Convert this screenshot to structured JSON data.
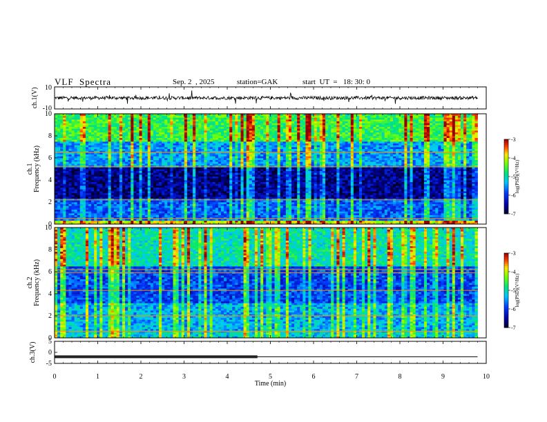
{
  "header": {
    "title": "VLF  Spectra",
    "date": "Sep. 2  , 2025",
    "station": "station=GAK",
    "start_ut": "start  UT  =   18: 30: 0"
  },
  "chart_data": [
    {
      "type": "line",
      "id": "ch1-waveform",
      "ylabel": "ch.1(V)",
      "ylim": [
        -10,
        10
      ],
      "yticks": [
        "10",
        "-10"
      ],
      "xlim": [
        0,
        10
      ],
      "description_values_note": "noisy signal centered near 0 V, amplitude ~±2 V with spikes to ~±5 V",
      "x_end": 9.8
    },
    {
      "type": "heatmap",
      "id": "ch1-spectrogram",
      "ylabel": "ch.1\nFrequency  (kHz)",
      "ylabel_top": "ch.1",
      "ylabel_bottom": "Frequency  (kHz)",
      "ylim": [
        0,
        10
      ],
      "yticks": [
        "0",
        "2",
        "4",
        "6",
        "8",
        "10"
      ],
      "xlim": [
        0,
        10
      ],
      "x_end": 9.8,
      "bands_khz": [
        {
          "from": 0,
          "to": 0.3,
          "level": -4
        },
        {
          "from": 0.3,
          "to": 2.4,
          "level": -5.8
        },
        {
          "from": 2.4,
          "to": 5.2,
          "level": -6.6
        },
        {
          "from": 5.2,
          "to": 7.5,
          "level": -5.5
        },
        {
          "from": 7.5,
          "to": 10,
          "level": -4.6
        }
      ],
      "colorbar": {
        "label": "log(PSD)(V²/Hz)",
        "ticks": [
          "-3",
          "-4",
          "-5",
          "-6",
          "-7"
        ],
        "min": -7,
        "max": -3
      }
    },
    {
      "type": "heatmap",
      "id": "ch2-spectrogram",
      "ylabel_top": "ch.2",
      "ylabel_bottom": "Frequency  (kHz)",
      "ylim": [
        0,
        10
      ],
      "yticks": [
        "0",
        "2",
        "4",
        "6",
        "8",
        "10"
      ],
      "xlim": [
        0,
        10
      ],
      "x_end": 9.8,
      "bands_khz": [
        {
          "from": 0,
          "to": 0.6,
          "level": -5.2
        },
        {
          "from": 0.6,
          "to": 3.2,
          "level": -5.4
        },
        {
          "from": 3.2,
          "to": 6.5,
          "level": -5.9
        },
        {
          "from": 6.5,
          "to": 10,
          "level": -5.0
        }
      ],
      "lines_khz": [
        6.2,
        5.9,
        4.3,
        2.0,
        0.6
      ],
      "colorbar": {
        "label": "log(PSD)(V²/Hz)",
        "ticks": [
          "-3",
          "-4",
          "-5",
          "-6",
          "-7"
        ],
        "min": -7,
        "max": -3
      }
    },
    {
      "type": "line",
      "id": "ch3-waveform",
      "ylabel": "ch.3(V)",
      "ylim": [
        -5,
        5
      ],
      "yticks": [
        "5",
        "0",
        "-5"
      ],
      "xlim": [
        0,
        10
      ],
      "xlabel": "Time  (min)",
      "xticks": [
        "0",
        "1",
        "2",
        "3",
        "4",
        "5",
        "6",
        "7",
        "8",
        "9",
        "10"
      ],
      "level_v": -2.0,
      "pulse_end_min": 4.7,
      "x_end": 9.8
    }
  ]
}
